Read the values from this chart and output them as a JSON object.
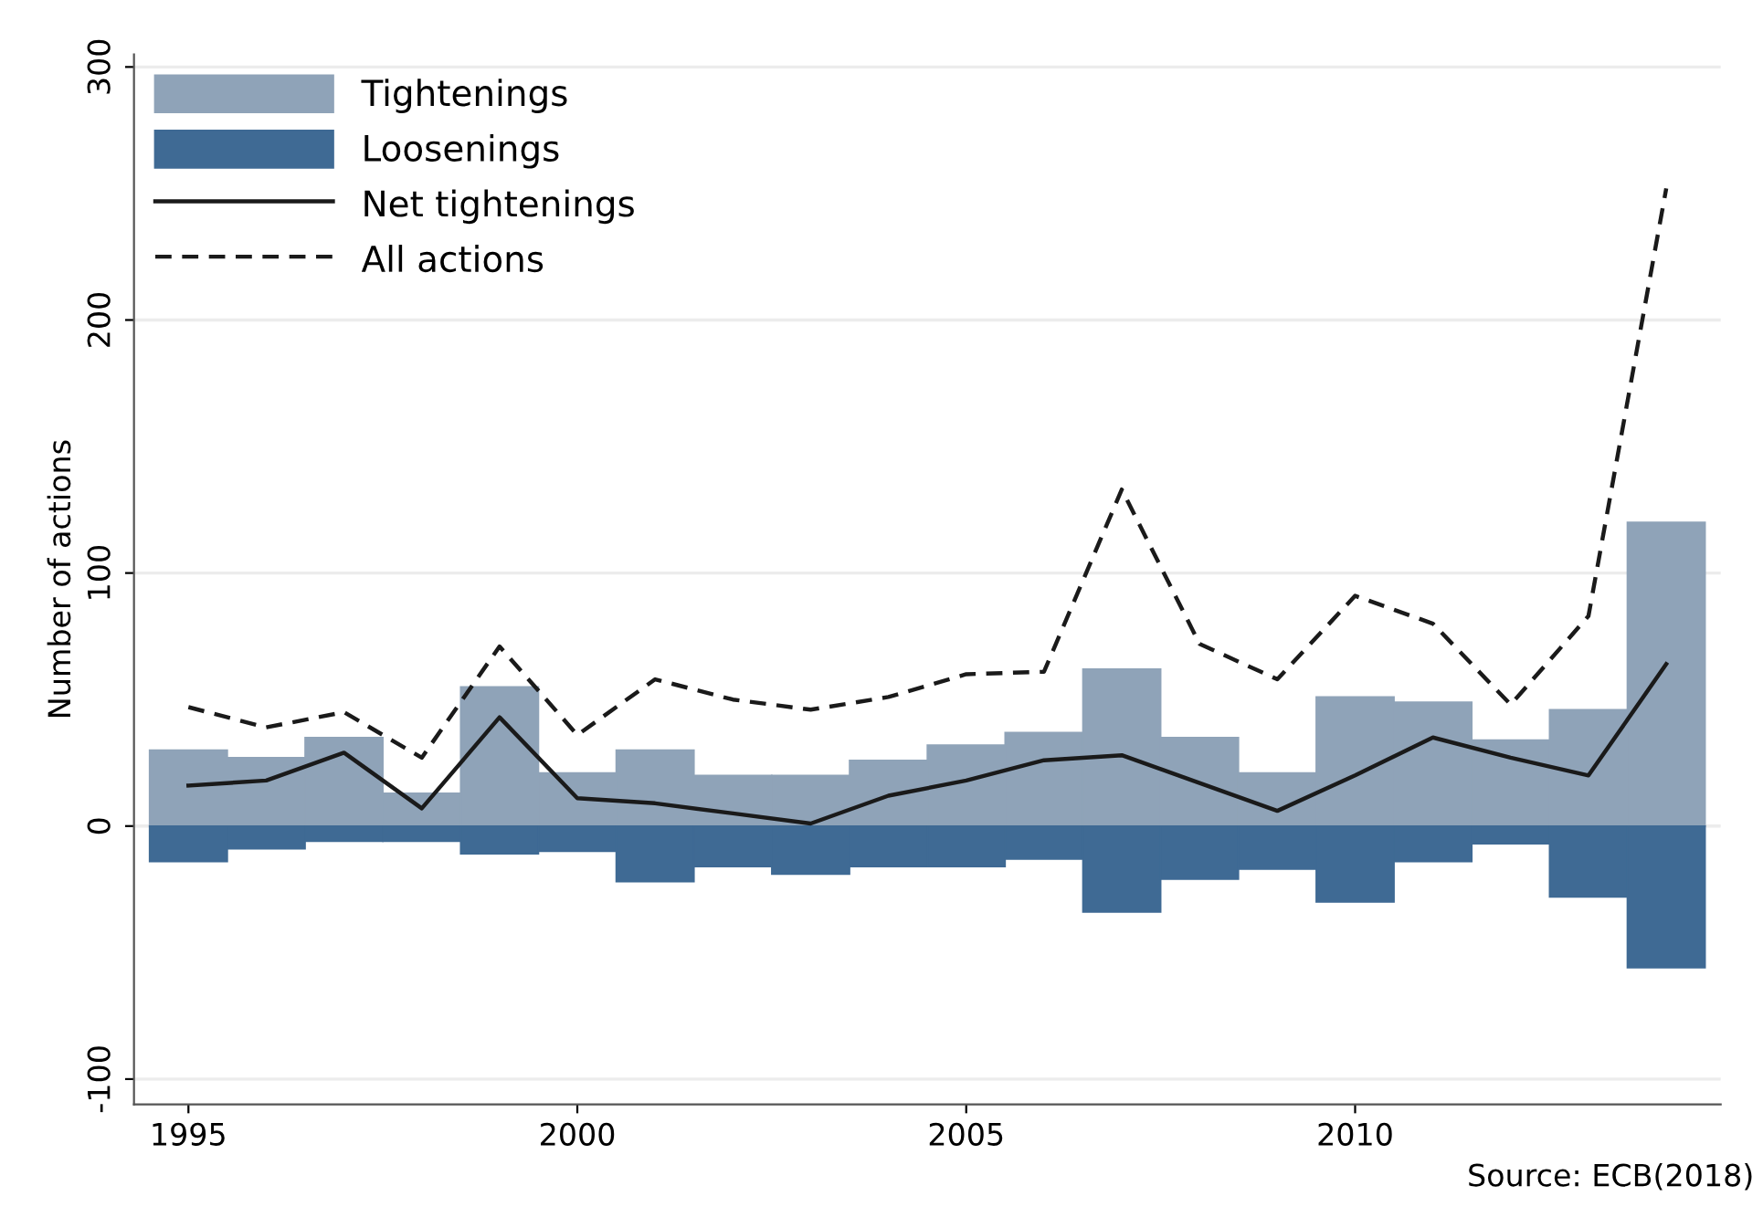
{
  "chart_data": {
    "type": "bar",
    "ylabel": "Number of actions",
    "x": [
      1995,
      1996,
      1997,
      1998,
      1999,
      2000,
      2001,
      2002,
      2003,
      2004,
      2005,
      2006,
      2007,
      2008,
      2009,
      2010,
      2011,
      2012,
      2013,
      2014
    ],
    "series": [
      {
        "name": "Tightenings",
        "color": "#8fa3b8",
        "values": [
          30,
          27,
          35,
          13,
          55,
          21,
          30,
          20,
          20,
          26,
          32,
          37,
          62,
          35,
          21,
          51,
          49,
          34,
          46,
          120
        ]
      },
      {
        "name": "Loosenings",
        "color": "#3f6a94",
        "values": [
          -14,
          -9,
          -6,
          -6,
          -11,
          -10,
          -22,
          -16,
          -19,
          -16,
          -16,
          -13,
          -34,
          -21,
          -17,
          -30,
          -14,
          -7,
          -28,
          -56
        ]
      },
      {
        "name": "Net tightenings",
        "type": "line",
        "color": "#1a1a1a",
        "line_style": "solid",
        "values": [
          16,
          18,
          29,
          7,
          43,
          11,
          9,
          5,
          1,
          12,
          18,
          26,
          28,
          17,
          6,
          20,
          35,
          27,
          20,
          64
        ]
      },
      {
        "name": "All actions",
        "type": "line",
        "color": "#1a1a1a",
        "line_style": "dashed",
        "values": [
          47,
          39,
          45,
          27,
          71,
          36,
          58,
          50,
          46,
          51,
          60,
          61,
          133,
          72,
          58,
          91,
          80,
          48,
          83,
          252
        ]
      }
    ],
    "xlim": [
      1994.3,
      2014.7
    ],
    "xticks": [
      1995,
      2000,
      2005,
      2010
    ],
    "ylim": [
      -110,
      305
    ],
    "yticks": [
      -100,
      0,
      100,
      200,
      300
    ],
    "stacked": true,
    "grid": "y",
    "legend": "top left",
    "marker": "none",
    "annotations": [
      "Source: ECB(2018)"
    ]
  }
}
